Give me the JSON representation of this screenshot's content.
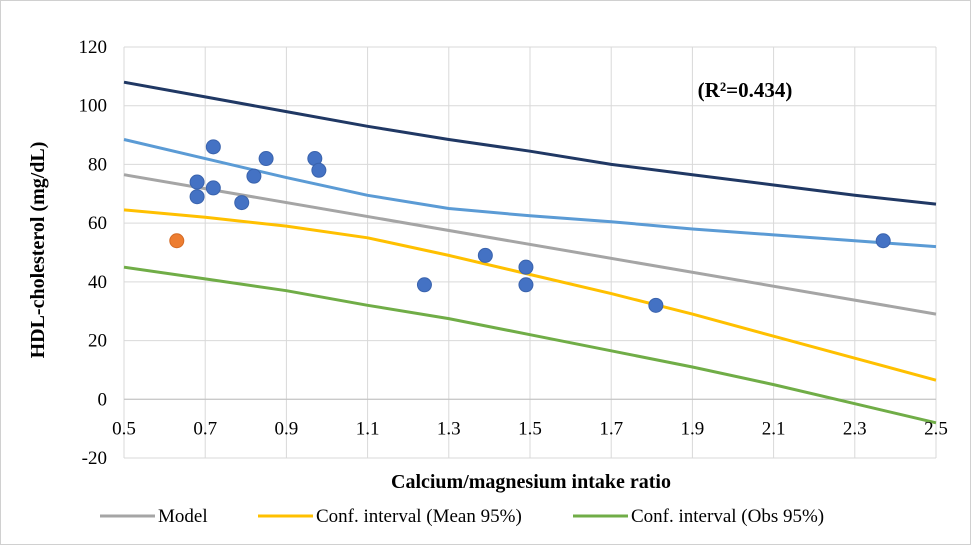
{
  "chart_data": {
    "type": "scatter",
    "xlabel": "Calcium/magnesium intake ratio",
    "ylabel": "HDL-cholesterol (mg/dL)",
    "annotation": "(R²=0.434)",
    "xlim": [
      0.5,
      2.5
    ],
    "ylim": [
      -20,
      120
    ],
    "x_ticks": [
      "0.5",
      "0.7",
      "0.9",
      "1.1",
      "1.3",
      "1.5",
      "1.7",
      "1.9",
      "2.1",
      "2.3",
      "2.5"
    ],
    "y_ticks": [
      "120",
      "100",
      "80",
      "60",
      "40",
      "20",
      "0",
      "-20"
    ],
    "grid": true,
    "legend_position": "bottom",
    "points": [
      {
        "x": 0.68,
        "y": 74
      },
      {
        "x": 0.68,
        "y": 69
      },
      {
        "x": 0.72,
        "y": 86
      },
      {
        "x": 0.72,
        "y": 72
      },
      {
        "x": 0.79,
        "y": 67
      },
      {
        "x": 0.82,
        "y": 76
      },
      {
        "x": 0.85,
        "y": 82
      },
      {
        "x": 0.97,
        "y": 82
      },
      {
        "x": 0.98,
        "y": 78
      },
      {
        "x": 1.24,
        "y": 39
      },
      {
        "x": 1.39,
        "y": 49
      },
      {
        "x": 1.49,
        "y": 45
      },
      {
        "x": 1.49,
        "y": 39
      },
      {
        "x": 1.81,
        "y": 32
      },
      {
        "x": 2.37,
        "y": 54
      }
    ],
    "highlight_points": [
      {
        "x": 0.63,
        "y": 54
      }
    ],
    "series": [
      {
        "name": "Model",
        "color": "#a5a5a5",
        "x": [
          0.5,
          2.5
        ],
        "y": [
          76.5,
          29
        ]
      },
      {
        "name": "Conf. interval (Mean 95%)",
        "color": "#ffc000",
        "x": [
          0.5,
          0.7,
          0.9,
          1.1,
          1.3,
          1.5,
          1.7,
          1.9,
          2.1,
          2.3,
          2.5
        ],
        "y": [
          64.5,
          62,
          59,
          55,
          49,
          42.5,
          36,
          29,
          21.5,
          14,
          6.5
        ]
      },
      {
        "name": "Conf. interval (Obs 95%)",
        "color": "#70ad47",
        "x": [
          0.5,
          0.7,
          0.9,
          1.1,
          1.3,
          1.5,
          1.7,
          1.9,
          2.1,
          2.3,
          2.5
        ],
        "y": [
          45,
          41,
          37,
          32,
          27.5,
          22,
          16.5,
          11,
          5,
          -1.5,
          -8
        ]
      }
    ],
    "unlabeled_lines": [
      {
        "color": "#5b9bd5",
        "x": [
          0.5,
          0.7,
          0.9,
          1.1,
          1.3,
          1.5,
          1.7,
          1.9,
          2.1,
          2.3,
          2.5
        ],
        "y": [
          88.5,
          82,
          75.5,
          69.5,
          65,
          62.5,
          60.5,
          58,
          56,
          54,
          52
        ]
      },
      {
        "color": "#203864",
        "x": [
          0.5,
          0.7,
          0.9,
          1.1,
          1.3,
          1.5,
          1.7,
          1.9,
          2.1,
          2.3,
          2.5
        ],
        "y": [
          108,
          103,
          98,
          93,
          88.5,
          84.5,
          80,
          76.5,
          73,
          69.5,
          66.5
        ]
      }
    ],
    "colors": {
      "point": "#4472c4",
      "highlight": "#ed7d31",
      "grid": "#d9d9d9"
    }
  }
}
